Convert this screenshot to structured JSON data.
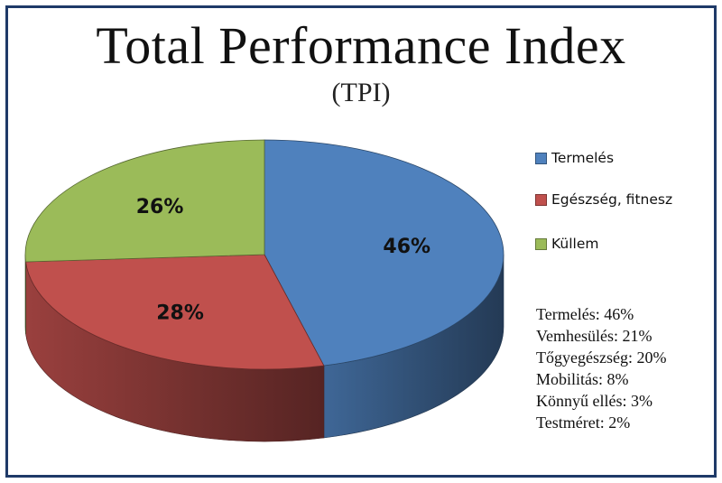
{
  "chart_data": {
    "type": "pie",
    "title": "Total Performance Index",
    "subtitle": "(TPI)",
    "slices": [
      {
        "label": "Termelés",
        "value": 46,
        "display": "46%",
        "color": "#4f81bd"
      },
      {
        "label": "Egészség, fitnesz",
        "value": 28,
        "display": "28%",
        "color": "#c0504d"
      },
      {
        "label": "Küllem",
        "value": 26,
        "display": "26%",
        "color": "#9bbb59"
      }
    ],
    "legend_position": "right",
    "breakdown": [
      "Termelés: 46%",
      "Vemhesülés: 21%",
      "Tőgyegészség: 20%",
      "Mobilitás: 8%",
      "Könnyű ellés: 3%",
      "Testméret: 2%"
    ]
  },
  "colors": {
    "frame": "#1f3a68",
    "termeles_side": "#2f5378",
    "egeszseg_side": "#8e3a37"
  }
}
